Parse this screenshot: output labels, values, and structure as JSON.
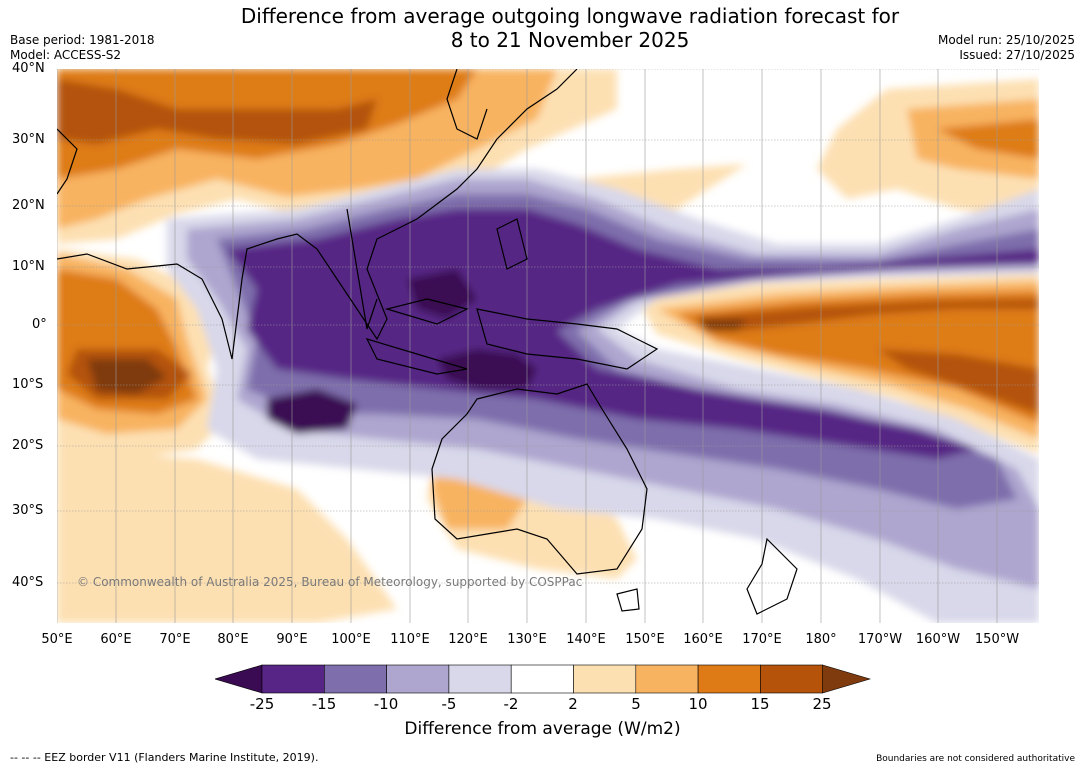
{
  "header": {
    "title_line1": "Difference from average outgoing longwave radiation forecast for",
    "title_line2": "8 to 21 November 2025",
    "base_period": "Base period: 1981-2018",
    "model": "Model: ACCESS-S2",
    "model_run": "Model run: 25/10/2025",
    "issued": "Issued: 27/10/2025"
  },
  "map": {
    "lat_labels": [
      "40°N",
      "30°N",
      "20°N",
      "10°N",
      "0°",
      "10°S",
      "20°S",
      "30°S",
      "40°S"
    ],
    "lon_labels": [
      "50°E",
      "60°E",
      "70°E",
      "80°E",
      "90°E",
      "100°E",
      "110°E",
      "120°E",
      "130°E",
      "140°E",
      "150°E",
      "160°E",
      "170°E",
      "180°",
      "170°W",
      "160°W",
      "150°W"
    ],
    "copyright": "© Commonwealth of Australia 2025, Bureau of Meteorology, supported by COSPPac"
  },
  "colorbar": {
    "labels": [
      "-25",
      "-15",
      "-10",
      "-5",
      "-2",
      "2",
      "5",
      "10",
      "15",
      "25"
    ],
    "colors": [
      "#3a0a52",
      "#562585",
      "#7e6eac",
      "#aea6cf",
      "#d8d8ea",
      "#ffffff",
      "#fde0b2",
      "#f8b361",
      "#de7b17",
      "#b45309",
      "#7f3a0d"
    ],
    "title": "Difference from average (W/m2)"
  },
  "footer": {
    "eez_note": "--  --  -- EEZ border V11 (Flanders Marine Institute, 2019).",
    "boundaries_note": "Boundaries are not considered authoritative"
  }
}
